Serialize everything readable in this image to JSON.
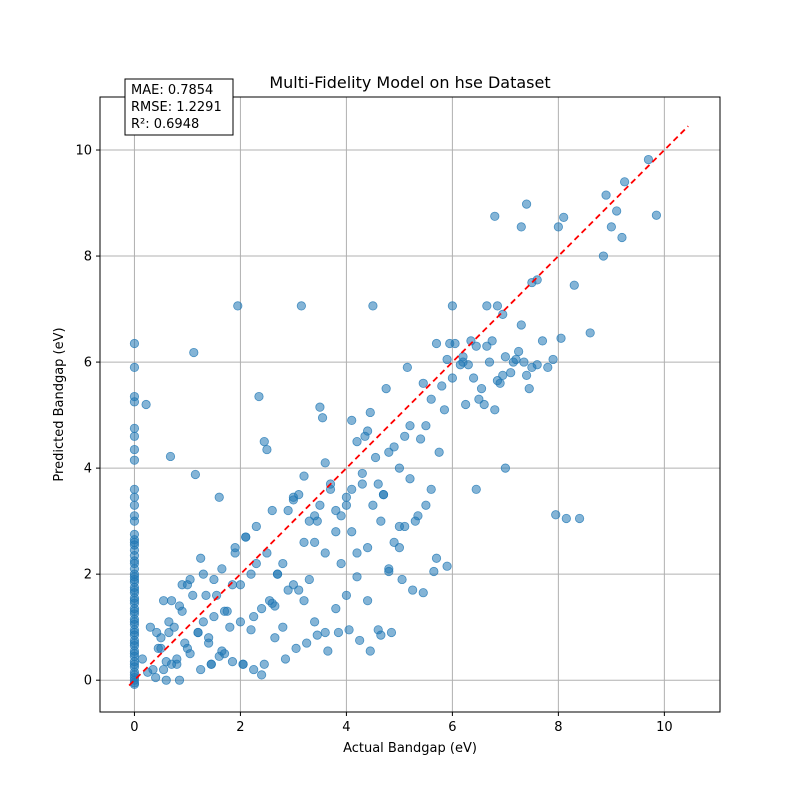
{
  "chart_data": {
    "type": "scatter",
    "title": "Multi-Fidelity Model on hse Dataset",
    "xlabel": "Actual Bandgap (eV)",
    "ylabel": "Predicted Bandgap (eV)",
    "xlim": [
      -0.65,
      11.05
    ],
    "ylim": [
      -0.6,
      11.0
    ],
    "xticks": [
      0,
      2,
      4,
      6,
      8,
      10
    ],
    "yticks": [
      0,
      2,
      4,
      6,
      8,
      10
    ],
    "grid": true,
    "stats_box": {
      "position": "top-left",
      "lines": [
        "MAE: 0.7854",
        "RMSE: 1.2291",
        "R²: 0.6948"
      ]
    },
    "reference_line": {
      "from": [
        -0.1,
        -0.1
      ],
      "to": [
        10.45,
        10.45
      ],
      "color": "#ff0000",
      "style": "dashed"
    },
    "colors": {
      "points": "#1f77b4",
      "points_edge": "#1f77b4",
      "reference": "#ff0000",
      "grid": "#b0b0b0"
    },
    "series": [
      {
        "x": [
          0,
          0,
          0,
          0,
          0,
          0,
          0,
          0,
          0,
          0,
          0,
          0,
          0,
          0,
          0,
          0,
          0,
          0,
          0,
          0,
          0,
          0,
          0,
          0,
          0,
          0,
          0,
          0,
          0,
          0,
          0,
          0,
          0,
          0,
          0,
          0,
          0,
          0,
          0,
          0,
          0,
          0,
          0,
          0,
          0,
          0,
          0,
          0,
          0,
          0,
          0,
          0,
          0,
          0,
          0,
          0,
          0.22,
          0.68,
          1.12,
          1.15,
          1.95,
          3.15,
          4.5,
          2.35,
          3.5,
          3.55,
          2.45,
          2.5,
          2.4,
          1.6,
          1.45,
          0.5,
          0.65,
          0.8,
          0.9,
          1.0,
          1.2,
          1.35,
          1.5,
          1.7,
          1.85,
          2.05,
          2.2,
          2.65,
          2.8,
          3.1,
          3.4,
          3.8,
          4.2,
          4.65,
          0.35,
          0.42,
          0.55,
          0.6,
          0.75,
          0.85,
          0.95,
          1.05,
          1.25,
          1.3,
          1.4,
          1.55,
          1.65,
          1.75,
          1.9,
          2.0,
          2.1,
          2.25,
          2.3,
          2.55,
          2.6,
          2.7,
          2.9,
          3.0,
          3.2,
          3.3,
          3.45,
          3.6,
          3.7,
          3.9,
          4.0,
          4.1,
          4.3,
          4.4,
          4.55,
          4.7,
          4.8,
          4.9,
          5.0,
          5.1,
          5.2,
          5.35,
          5.5,
          5.6,
          5.75,
          5.85,
          0.3,
          0.5,
          0.7,
          0.9,
          1.1,
          1.3,
          1.5,
          1.7,
          1.9,
          2.1,
          2.3,
          2.5,
          2.7,
          2.9,
          3.1,
          3.3,
          3.5,
          3.7,
          3.9,
          4.1,
          4.3,
          4.5,
          4.7,
          4.9,
          5.1,
          5.3,
          5.5,
          5.7,
          0.15,
          0.25,
          0.45,
          0.55,
          0.65,
          0.7,
          0.8,
          1.0,
          1.2,
          1.4,
          1.6,
          1.8,
          2.0,
          2.2,
          2.4,
          2.6,
          2.8,
          3.0,
          3.2,
          3.4,
          3.6,
          3.8,
          4.0,
          4.2,
          4.4,
          4.6,
          4.8,
          5.0,
          0.4,
          0.6,
          0.85,
          1.05,
          1.25,
          1.45,
          1.65,
          1.85,
          2.05,
          2.25,
          2.45,
          2.65,
          2.85,
          3.05,
          3.25,
          3.45,
          3.65,
          3.85,
          4.05,
          4.25,
          4.45,
          4.65,
          4.85,
          5.05,
          5.25,
          5.45,
          5.65,
          5.9,
          3.0,
          3.2,
          3.4,
          3.6,
          3.8,
          4.0,
          4.2,
          4.4,
          4.6,
          4.8,
          5.0,
          5.2,
          5.4,
          5.6,
          5.8,
          6.0,
          4.1,
          4.35,
          4.45,
          4.75,
          5.15,
          5.45,
          5.7,
          5.9,
          6.05,
          6.2,
          6.3,
          6.45,
          6.55,
          6.6,
          6.7,
          6.8,
          6.9,
          7.0,
          7.1,
          7.2,
          7.3,
          7.4,
          7.5,
          7.6,
          7.7,
          7.8,
          6.25,
          6.5,
          6.75,
          6.85,
          7.15,
          7.35,
          6.15,
          6.4,
          6.65,
          6.95,
          7.25,
          7.45,
          6.0,
          6.35,
          6.65,
          6.8,
          6.85,
          6.95,
          7.3,
          7.4,
          7.5,
          7.6,
          8.0,
          8.1,
          8.3,
          8.6,
          8.85,
          8.9,
          9.0,
          9.1,
          9.2,
          9.25,
          9.7,
          9.85,
          7.0,
          7.9,
          7.95,
          8.05,
          8.15,
          8.4,
          6.45,
          5.95,
          6.2
        ],
        "y": [
          6.35,
          5.9,
          5.35,
          5.25,
          4.75,
          4.6,
          4.35,
          4.15,
          3.6,
          3.45,
          3.3,
          3.1,
          3.0,
          2.75,
          2.65,
          2.55,
          2.45,
          2.35,
          2.25,
          2.1,
          2.0,
          1.95,
          1.85,
          1.75,
          1.65,
          1.55,
          1.45,
          1.35,
          1.25,
          1.15,
          1.05,
          0.95,
          0.85,
          0.75,
          0.65,
          0.55,
          0.45,
          0.35,
          0.25,
          0.15,
          0.05,
          0.0,
          -0.05,
          -0.08,
          0.1,
          0.3,
          0.5,
          0.7,
          0.9,
          1.1,
          1.3,
          1.5,
          1.7,
          1.9,
          2.2,
          2.6,
          5.2,
          4.22,
          6.18,
          3.88,
          7.06,
          7.06,
          7.06,
          5.35,
          5.15,
          4.95,
          4.5,
          4.35,
          0.1,
          3.45,
          0.3,
          0.8,
          1.1,
          0.4,
          1.3,
          0.6,
          0.9,
          1.6,
          1.2,
          0.5,
          1.8,
          0.3,
          2.0,
          1.4,
          2.2,
          1.7,
          2.6,
          2.8,
          2.4,
          3.0,
          0.2,
          0.9,
          1.5,
          0.35,
          1.0,
          1.4,
          0.7,
          1.9,
          2.3,
          1.1,
          0.8,
          1.6,
          2.1,
          1.3,
          2.5,
          1.8,
          2.7,
          1.2,
          2.9,
          1.5,
          3.2,
          2.0,
          1.7,
          3.4,
          2.6,
          1.9,
          3.0,
          2.4,
          3.6,
          2.2,
          3.3,
          2.8,
          3.9,
          2.5,
          4.2,
          3.5,
          2.1,
          4.4,
          2.9,
          4.6,
          3.8,
          3.1,
          4.8,
          3.6,
          4.3,
          5.1,
          1.0,
          0.6,
          0.3,
          1.8,
          1.6,
          2.0,
          1.9,
          1.3,
          2.4,
          2.7,
          2.2,
          2.4,
          2.0,
          3.2,
          3.5,
          3.0,
          3.3,
          3.7,
          3.1,
          3.6,
          3.7,
          3.3,
          3.5,
          2.6,
          2.9,
          3.0,
          3.3,
          2.3,
          0.4,
          0.15,
          0.6,
          0.2,
          0.9,
          1.5,
          0.3,
          1.8,
          0.9,
          0.7,
          0.45,
          1.0,
          1.1,
          0.95,
          1.35,
          1.45,
          1.0,
          1.8,
          1.5,
          1.1,
          0.9,
          1.35,
          1.6,
          1.95,
          1.5,
          0.95,
          2.05,
          2.5,
          0.05,
          0.0,
          0.0,
          0.5,
          0.2,
          0.3,
          0.55,
          0.35,
          0.3,
          0.2,
          0.3,
          0.8,
          0.4,
          0.6,
          0.7,
          0.85,
          0.55,
          0.9,
          0.95,
          0.75,
          0.55,
          0.85,
          0.9,
          1.9,
          1.7,
          1.65,
          2.05,
          2.15,
          3.45,
          3.85,
          3.1,
          4.1,
          3.2,
          3.45,
          4.5,
          4.7,
          3.7,
          4.3,
          4.0,
          4.8,
          4.55,
          5.3,
          5.55,
          5.7,
          4.9,
          4.6,
          5.05,
          5.5,
          5.9,
          5.6,
          6.35,
          6.05,
          6.35,
          6.1,
          5.95,
          6.3,
          5.5,
          5.2,
          6.0,
          5.1,
          5.6,
          6.1,
          5.8,
          6.05,
          6.7,
          5.75,
          5.9,
          5.95,
          6.4,
          5.9,
          5.2,
          5.3,
          6.4,
          5.65,
          6.0,
          6.0,
          5.95,
          5.7,
          6.3,
          5.75,
          6.2,
          5.5,
          7.06,
          6.4,
          7.06,
          8.75,
          7.06,
          6.9,
          8.55,
          8.98,
          7.5,
          7.55,
          8.55,
          8.73,
          7.45,
          6.55,
          8.0,
          9.15,
          8.55,
          8.85,
          8.35,
          9.4,
          9.82,
          8.77,
          4.0,
          6.05,
          3.12,
          6.45,
          3.05,
          3.05,
          3.6,
          6.35,
          6.0
        ]
      }
    ]
  }
}
